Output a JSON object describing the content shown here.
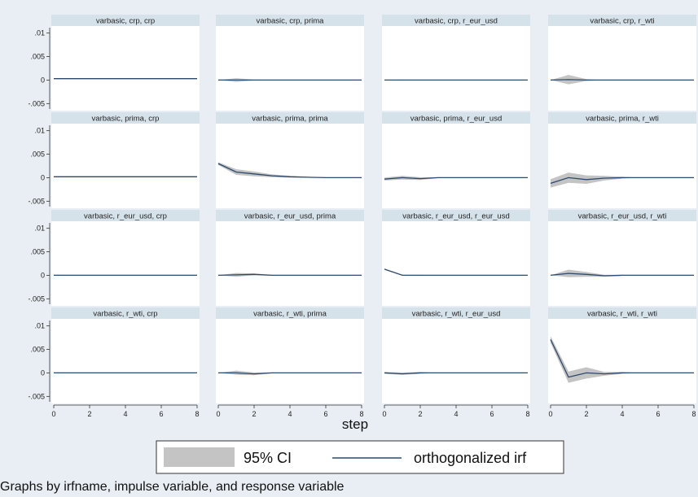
{
  "chart_data": {
    "type": "line",
    "layout_grid": "4x4",
    "xlabel": "step",
    "xticks": [
      0,
      2,
      4,
      6,
      8
    ],
    "xlim": [
      0,
      8
    ],
    "yticks": [
      ".01",
      ".005",
      "0",
      "-.005"
    ],
    "ylim": [
      -0.0065,
      0.0115
    ],
    "legend": {
      "position": "bottom",
      "entries": [
        {
          "label": "95% CI",
          "kind": "band",
          "color": "#c4c4c4"
        },
        {
          "label": "orthogonalized irf",
          "kind": "line",
          "color": "#2c4a6e"
        }
      ]
    },
    "series_style": {
      "irf_color": "#2c4a6e",
      "ci_color": "#c4c4c4",
      "strip_color": "#d6e2ea"
    },
    "panels": [
      {
        "title": "varbasic, crp, crp",
        "x": [
          0,
          1,
          2,
          3,
          4,
          5,
          6,
          7,
          8
        ],
        "irf": [
          0.0003,
          0.0003,
          0.0003,
          0.0003,
          0.0003,
          0.0003,
          0.0003,
          0.0003,
          0.0003
        ],
        "lo": [
          0.0002,
          0.0002,
          0.0002,
          0.0002,
          0.0002,
          0.0002,
          0.0002,
          0.0002,
          0.0002
        ],
        "hi": [
          0.0004,
          0.0004,
          0.0004,
          0.0004,
          0.0004,
          0.0004,
          0.0004,
          0.0004,
          0.0004
        ]
      },
      {
        "title": "varbasic, crp, prima",
        "x": [
          0,
          1,
          2,
          3,
          4,
          5,
          6,
          7,
          8
        ],
        "irf": [
          0,
          0,
          0,
          0,
          0,
          0,
          0,
          0,
          0
        ],
        "lo": [
          0,
          -0.0004,
          -0.0001,
          0,
          0,
          0,
          0,
          0,
          0
        ],
        "hi": [
          0,
          0.0004,
          0.0001,
          0,
          0,
          0,
          0,
          0,
          0
        ]
      },
      {
        "title": "varbasic, crp, r_eur_usd",
        "x": [
          0,
          1,
          2,
          3,
          4,
          5,
          6,
          7,
          8
        ],
        "irf": [
          0,
          0,
          0,
          0,
          0,
          0,
          0,
          0,
          0
        ],
        "lo": [
          0,
          -0.0001,
          0,
          0,
          0,
          0,
          0,
          0,
          0
        ],
        "hi": [
          0,
          0.0001,
          0,
          0,
          0,
          0,
          0,
          0,
          0
        ]
      },
      {
        "title": "varbasic, crp, r_wti",
        "x": [
          0,
          1,
          2,
          3,
          4,
          5,
          6,
          7,
          8
        ],
        "irf": [
          0,
          0.0001,
          0,
          0,
          0,
          0,
          0,
          0,
          0
        ],
        "lo": [
          0,
          -0.0009,
          -0.0002,
          0,
          0,
          0,
          0,
          0,
          0
        ],
        "hi": [
          0,
          0.0011,
          0.0002,
          0,
          0,
          0,
          0,
          0,
          0
        ]
      },
      {
        "title": "varbasic, prima, crp",
        "x": [
          0,
          1,
          2,
          3,
          4,
          5,
          6,
          7,
          8
        ],
        "irf": [
          0.0002,
          0.0002,
          0.0002,
          0.0002,
          0.0002,
          0.0002,
          0.0002,
          0.0002,
          0.0002
        ],
        "lo": [
          0.0001,
          0.0001,
          0.0001,
          0.0001,
          0.0001,
          0.0001,
          0.0001,
          0.0001,
          0.0001
        ],
        "hi": [
          0.0003,
          0.0003,
          0.0003,
          0.0003,
          0.0003,
          0.0003,
          0.0003,
          0.0003,
          0.0003
        ]
      },
      {
        "title": "varbasic, prima, prima",
        "x": [
          0,
          1,
          2,
          3,
          4,
          5,
          6,
          7,
          8
        ],
        "irf": [
          0.003,
          0.0012,
          0.0008,
          0.0004,
          0.0002,
          0.0001,
          0,
          0,
          0
        ],
        "lo": [
          0.0027,
          0.0006,
          0.0003,
          0.0001,
          0,
          0,
          0,
          0,
          0
        ],
        "hi": [
          0.0033,
          0.0018,
          0.0013,
          0.0007,
          0.0004,
          0.0002,
          0.0001,
          0,
          0
        ],
        "ci_end": 6
      },
      {
        "title": "varbasic, prima, r_eur_usd",
        "x": [
          0,
          1,
          2,
          3,
          4,
          5,
          6,
          7,
          8
        ],
        "irf": [
          -0.0003,
          0,
          -0.0002,
          0,
          0,
          0,
          0,
          0,
          0
        ],
        "lo": [
          -0.0006,
          -0.0004,
          -0.0005,
          -0.0001,
          0,
          0,
          0,
          0,
          0
        ],
        "hi": [
          0,
          0.0004,
          0.0001,
          0.0001,
          0,
          0,
          0,
          0,
          0
        ],
        "ci_end": 3
      },
      {
        "title": "varbasic, prima, r_wti",
        "x": [
          0,
          1,
          2,
          3,
          4,
          5,
          6,
          7,
          8
        ],
        "irf": [
          -0.0012,
          0,
          -0.0004,
          -0.0001,
          0,
          0,
          0,
          0,
          0
        ],
        "lo": [
          -0.0021,
          -0.0011,
          -0.0013,
          -0.0006,
          -0.0002,
          0,
          0,
          0,
          0
        ],
        "hi": [
          -0.0003,
          0.0011,
          0.0005,
          0.0004,
          0.0002,
          0,
          0,
          0,
          0
        ],
        "ci_end": 5
      },
      {
        "title": "varbasic, r_eur_usd, crp",
        "x": [
          0,
          1,
          2,
          3,
          4,
          5,
          6,
          7,
          8
        ],
        "irf": [
          0,
          0,
          0,
          0,
          0,
          0,
          0,
          0,
          0
        ],
        "lo": [
          -0.0001,
          -0.0001,
          -0.0001,
          -0.0001,
          -0.0001,
          -0.0001,
          -0.0001,
          -0.0001,
          -0.0001
        ],
        "hi": [
          0.0001,
          0.0001,
          0.0001,
          0.0001,
          0.0001,
          0.0001,
          0.0001,
          0.0001,
          0.0001
        ]
      },
      {
        "title": "varbasic, r_eur_usd, prima",
        "x": [
          0,
          1,
          2,
          3,
          4,
          5,
          6,
          7,
          8
        ],
        "irf": [
          0,
          0.0001,
          0.0002,
          0,
          0,
          0,
          0,
          0,
          0
        ],
        "lo": [
          0,
          -0.0003,
          0,
          -0.0001,
          0,
          0,
          0,
          0,
          0
        ],
        "hi": [
          0,
          0.0005,
          0.0004,
          0.0001,
          0,
          0,
          0,
          0,
          0
        ],
        "ci_end": 4
      },
      {
        "title": "varbasic, r_eur_usd, r_eur_usd",
        "x": [
          0,
          1,
          2,
          3,
          4,
          5,
          6,
          7,
          8
        ],
        "irf": [
          0.0013,
          0,
          0,
          0,
          0,
          0,
          0,
          0,
          0
        ],
        "lo": [
          0.0012,
          -0.0001,
          -0.0001,
          0,
          0,
          0,
          0,
          0,
          0
        ],
        "hi": [
          0.0014,
          0.0001,
          0.0001,
          0,
          0,
          0,
          0,
          0,
          0
        ]
      },
      {
        "title": "varbasic, r_eur_usd, r_wti",
        "x": [
          0,
          1,
          2,
          3,
          4,
          5,
          6,
          7,
          8
        ],
        "irf": [
          0,
          0.0004,
          0.0002,
          -0.0001,
          0,
          0,
          0,
          0,
          0
        ],
        "lo": [
          0,
          -0.0004,
          -0.0003,
          -0.0003,
          -0.0001,
          0,
          0,
          0,
          0
        ],
        "hi": [
          0,
          0.0012,
          0.0007,
          0.0001,
          0.0001,
          0,
          0,
          0,
          0
        ],
        "ci_end": 5
      },
      {
        "title": "varbasic, r_wti, crp",
        "x": [
          0,
          1,
          2,
          3,
          4,
          5,
          6,
          7,
          8
        ],
        "irf": [
          0,
          0,
          0,
          0,
          0,
          0,
          0,
          0,
          0
        ],
        "lo": [
          -0.0001,
          -0.0001,
          -0.0001,
          -0.0001,
          -0.0001,
          -0.0001,
          -0.0001,
          -0.0001,
          -0.0001
        ],
        "hi": [
          0.0001,
          0.0001,
          0.0001,
          0.0001,
          0.0001,
          0.0001,
          0.0001,
          0.0001,
          0.0001
        ]
      },
      {
        "title": "varbasic, r_wti, prima",
        "x": [
          0,
          1,
          2,
          3,
          4,
          5,
          6,
          7,
          8
        ],
        "irf": [
          0,
          0,
          -0.0002,
          0,
          0,
          0,
          0,
          0,
          0
        ],
        "lo": [
          0,
          -0.0004,
          -0.0005,
          -0.0001,
          0,
          0,
          0,
          0,
          0
        ],
        "hi": [
          0,
          0.0005,
          0.0001,
          0.0001,
          0,
          0,
          0,
          0,
          0
        ],
        "ci_end": 4
      },
      {
        "title": "varbasic, r_wti, r_eur_usd",
        "x": [
          0,
          1,
          2,
          3,
          4,
          5,
          6,
          7,
          8
        ],
        "irf": [
          0,
          -0.0002,
          0,
          0,
          0,
          0,
          0,
          0,
          0
        ],
        "lo": [
          -0.0002,
          -0.0004,
          -0.0002,
          0,
          0,
          0,
          0,
          0,
          0
        ],
        "hi": [
          0.0002,
          0.0001,
          0.0002,
          0,
          0,
          0,
          0,
          0,
          0
        ],
        "ci_end": 3
      },
      {
        "title": "varbasic, r_wti, r_wti",
        "x": [
          0,
          1,
          2,
          3,
          4,
          5,
          6,
          7,
          8
        ],
        "irf": [
          0.0071,
          -0.0009,
          0,
          -0.0002,
          0,
          0,
          0,
          0,
          0
        ],
        "lo": [
          0.0064,
          -0.0021,
          -0.0012,
          -0.0006,
          -0.0002,
          0,
          0,
          0,
          0
        ],
        "hi": [
          0.0078,
          0.0003,
          0.0012,
          0.0002,
          0.0002,
          0,
          0,
          0,
          0
        ],
        "ci_end": 5
      }
    ]
  },
  "footer": {
    "note": "Graphs by irfname, impulse variable, and response variable"
  }
}
